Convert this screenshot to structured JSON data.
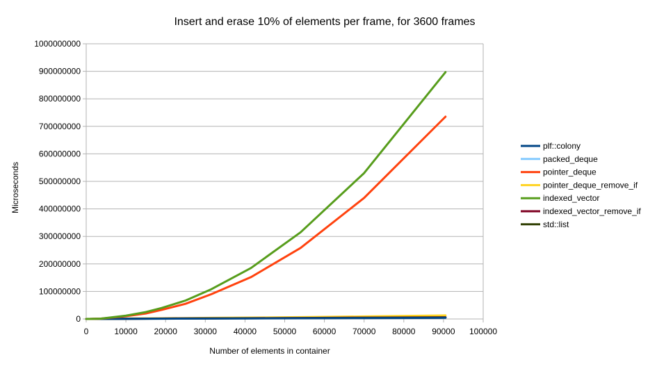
{
  "chart_data": {
    "type": "line",
    "title": "Insert and erase 10% of elements per frame, for 3600 frames",
    "xlabel": "Number of elements in container",
    "ylabel": "Microseconds",
    "xlim": [
      0,
      100000
    ],
    "ylim": [
      0,
      1000000000
    ],
    "x_ticks": [
      0,
      10000,
      20000,
      30000,
      40000,
      50000,
      60000,
      70000,
      80000,
      90000,
      100000
    ],
    "y_ticks": [
      0,
      100000000,
      200000000,
      300000000,
      400000000,
      500000000,
      600000000,
      700000000,
      800000000,
      900000000,
      1000000000
    ],
    "x_tick_labels": [
      "0",
      "10000",
      "20000",
      "30000",
      "40000",
      "50000",
      "60000",
      "70000",
      "80000",
      "90000",
      "100000"
    ],
    "y_tick_labels": [
      "0",
      "100000000",
      "200000000",
      "300000000",
      "400000000",
      "500000000",
      "600000000",
      "700000000",
      "800000000",
      "900000000",
      "1000000000"
    ],
    "grid": "horizontal",
    "legend_position": "right",
    "series": [
      {
        "name": "plf::colony",
        "color": "#004586",
        "x": [
          0,
          3500,
          10000,
          19000,
          31500,
          41500,
          54000,
          70000,
          90500
        ],
        "y": [
          0,
          200000,
          500000,
          1000000,
          1600000,
          2000000,
          2500000,
          3200000,
          4200000
        ]
      },
      {
        "name": "packed_deque",
        "color": "#83caff",
        "x": [
          0,
          3500,
          10000,
          19000,
          31500,
          41500,
          54000,
          70000,
          90500
        ],
        "y": [
          0,
          300000,
          800000,
          1500000,
          2500000,
          3200000,
          4200000,
          5500000,
          7500000
        ]
      },
      {
        "name": "pointer_deque",
        "color": "#ff420e",
        "x": [
          0,
          3500,
          10000,
          15000,
          19000,
          25000,
          31500,
          41500,
          54000,
          70000,
          90500
        ],
        "y": [
          0,
          1000000,
          10000000,
          20000000,
          33000000,
          55000000,
          90000000,
          152000000,
          258000000,
          440000000,
          735000000
        ]
      },
      {
        "name": "pointer_deque_remove_if",
        "color": "#ffd320",
        "x": [
          0,
          3500,
          10000,
          19000,
          31500,
          41500,
          54000,
          70000,
          90500
        ],
        "y": [
          0,
          500000,
          1500000,
          2500000,
          4000000,
          5000000,
          6500000,
          9000000,
          13000000
        ]
      },
      {
        "name": "indexed_vector",
        "color": "#579d1c",
        "x": [
          0,
          3500,
          10000,
          15000,
          19000,
          25000,
          31500,
          41500,
          54000,
          70000,
          90500
        ],
        "y": [
          0,
          1000000,
          12000000,
          25000000,
          40000000,
          67000000,
          108000000,
          185000000,
          315000000,
          530000000,
          897000000
        ]
      },
      {
        "name": "indexed_vector_remove_if",
        "color": "#7e0021",
        "x": [
          0,
          3500,
          10000,
          19000,
          31500,
          41500,
          54000,
          70000,
          90500
        ],
        "y": [
          0,
          300000,
          800000,
          1500000,
          2200000,
          2800000,
          3500000,
          4800000,
          6000000
        ]
      },
      {
        "name": "std::list",
        "color": "#314004",
        "x": [
          0,
          3500,
          10000,
          19000,
          31500,
          41500,
          54000,
          70000,
          90500
        ],
        "y": [
          0,
          200000,
          700000,
          1200000,
          2000000,
          2500000,
          3000000,
          4000000,
          5000000
        ]
      }
    ]
  }
}
